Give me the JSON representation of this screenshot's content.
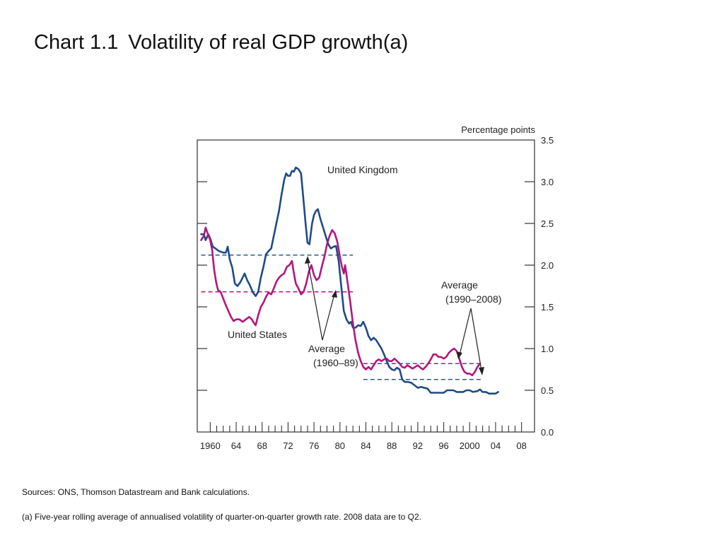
{
  "title": {
    "label": "Chart 1.1",
    "text": "Volatility of real GDP growth(a)"
  },
  "sources": "Sources:  ONS, Thomson Datastream and Bank calculations.",
  "footnote": "(a)  Five-year rolling average of annualised volatility of quarter-on-quarter growth rate.  2008 data are to Q2.",
  "colors": {
    "uk": "#1f4b85",
    "us": "#b0177f",
    "axis": "#333333"
  },
  "chart_data": {
    "type": "line",
    "unit_label": "Percentage points",
    "xlim": [
      1958,
      2010
    ],
    "ylim": [
      0,
      3.5
    ],
    "y_ticks": [
      0,
      0.5,
      1,
      1.5,
      2,
      2.5,
      3,
      3.5
    ],
    "y_tick_labels": [
      "0.0",
      "0.5",
      "1.0",
      "1.5",
      "2.0",
      "2.5",
      "3.0",
      "3.5"
    ],
    "x_tick_labels": [
      {
        "x": 1960,
        "label": "1960"
      },
      {
        "x": 1964,
        "label": "64"
      },
      {
        "x": 1968,
        "label": "68"
      },
      {
        "x": 1972,
        "label": "72"
      },
      {
        "x": 1976,
        "label": "76"
      },
      {
        "x": 1980,
        "label": "80"
      },
      {
        "x": 1984,
        "label": "84"
      },
      {
        "x": 1988,
        "label": "88"
      },
      {
        "x": 1992,
        "label": "92"
      },
      {
        "x": 1996,
        "label": "96"
      },
      {
        "x": 2000,
        "label": "2000"
      },
      {
        "x": 2004,
        "label": "04"
      },
      {
        "x": 2008,
        "label": "08"
      }
    ],
    "series": [
      {
        "name": "United Kingdom",
        "color": "#1f4b85",
        "points": [
          [
            1958.6,
            2.37
          ],
          [
            1959.0,
            2.37
          ],
          [
            1959.3,
            2.3
          ],
          [
            1959.7,
            2.37
          ],
          [
            1960.0,
            2.32
          ],
          [
            1960.4,
            2.22
          ],
          [
            1960.8,
            2.2
          ],
          [
            1961.3,
            2.17
          ],
          [
            1962.0,
            2.15
          ],
          [
            1962.4,
            2.15
          ],
          [
            1962.7,
            2.22
          ],
          [
            1963.0,
            2.07
          ],
          [
            1963.4,
            1.97
          ],
          [
            1963.8,
            1.78
          ],
          [
            1964.2,
            1.75
          ],
          [
            1964.6,
            1.79
          ],
          [
            1965.0,
            1.85
          ],
          [
            1965.3,
            1.9
          ],
          [
            1965.7,
            1.82
          ],
          [
            1966.1,
            1.76
          ],
          [
            1966.6,
            1.67
          ],
          [
            1967.0,
            1.63
          ],
          [
            1967.4,
            1.68
          ],
          [
            1967.8,
            1.85
          ],
          [
            1968.2,
            1.98
          ],
          [
            1968.6,
            2.13
          ],
          [
            1969.0,
            2.17
          ],
          [
            1969.4,
            2.2
          ],
          [
            1969.8,
            2.35
          ],
          [
            1970.2,
            2.5
          ],
          [
            1970.6,
            2.65
          ],
          [
            1971.0,
            2.85
          ],
          [
            1971.4,
            3.02
          ],
          [
            1971.7,
            3.1
          ],
          [
            1972.0,
            3.07
          ],
          [
            1972.3,
            3.07
          ],
          [
            1972.6,
            3.13
          ],
          [
            1972.9,
            3.12
          ],
          [
            1973.2,
            3.17
          ],
          [
            1973.6,
            3.15
          ],
          [
            1974.0,
            3.1
          ],
          [
            1974.3,
            2.85
          ],
          [
            1974.7,
            2.5
          ],
          [
            1975.0,
            2.27
          ],
          [
            1975.3,
            2.25
          ],
          [
            1975.7,
            2.5
          ],
          [
            1976.0,
            2.6
          ],
          [
            1976.3,
            2.65
          ],
          [
            1976.6,
            2.67
          ],
          [
            1977.0,
            2.55
          ],
          [
            1977.4,
            2.45
          ],
          [
            1977.8,
            2.35
          ],
          [
            1978.2,
            2.25
          ],
          [
            1978.6,
            2.2
          ],
          [
            1979.0,
            2.22
          ],
          [
            1979.4,
            2.23
          ],
          [
            1979.8,
            2.05
          ],
          [
            1980.2,
            1.75
          ],
          [
            1980.6,
            1.45
          ],
          [
            1981.0,
            1.35
          ],
          [
            1981.4,
            1.3
          ],
          [
            1981.7,
            1.32
          ],
          [
            1982.0,
            1.25
          ],
          [
            1982.4,
            1.25
          ],
          [
            1982.8,
            1.28
          ],
          [
            1983.2,
            1.27
          ],
          [
            1983.6,
            1.32
          ],
          [
            1984.0,
            1.25
          ],
          [
            1984.4,
            1.15
          ],
          [
            1984.8,
            1.1
          ],
          [
            1985.2,
            1.13
          ],
          [
            1985.6,
            1.1
          ],
          [
            1986.0,
            1.05
          ],
          [
            1986.4,
            1.0
          ],
          [
            1986.8,
            0.93
          ],
          [
            1987.2,
            0.85
          ],
          [
            1987.6,
            0.78
          ],
          [
            1988.0,
            0.75
          ],
          [
            1988.4,
            0.74
          ],
          [
            1988.8,
            0.77
          ],
          [
            1989.2,
            0.75
          ],
          [
            1989.6,
            0.63
          ],
          [
            1990.0,
            0.6
          ],
          [
            1990.5,
            0.6
          ],
          [
            1991.0,
            0.59
          ],
          [
            1991.5,
            0.56
          ],
          [
            1992.0,
            0.53
          ],
          [
            1992.5,
            0.54
          ],
          [
            1993.0,
            0.53
          ],
          [
            1993.5,
            0.52
          ],
          [
            1994.0,
            0.47
          ],
          [
            1995.0,
            0.47
          ],
          [
            1996.0,
            0.47
          ],
          [
            1996.5,
            0.5
          ],
          [
            1997.5,
            0.5
          ],
          [
            1998.0,
            0.48
          ],
          [
            1999.0,
            0.48
          ],
          [
            1999.5,
            0.5
          ],
          [
            2000.0,
            0.5
          ],
          [
            2000.5,
            0.48
          ],
          [
            2001.2,
            0.49
          ],
          [
            2001.6,
            0.51
          ],
          [
            2002.0,
            0.48
          ],
          [
            2002.5,
            0.48
          ],
          [
            2003.0,
            0.46
          ],
          [
            2004.0,
            0.46
          ],
          [
            2004.4,
            0.48
          ]
        ]
      },
      {
        "name": "United States",
        "color": "#b0177f",
        "points": [
          [
            1958.6,
            2.3
          ],
          [
            1959.0,
            2.35
          ],
          [
            1959.3,
            2.45
          ],
          [
            1959.6,
            2.38
          ],
          [
            1960.0,
            2.3
          ],
          [
            1960.3,
            2.18
          ],
          [
            1960.6,
            1.95
          ],
          [
            1960.9,
            1.8
          ],
          [
            1961.2,
            1.7
          ],
          [
            1961.6,
            1.68
          ],
          [
            1962.0,
            1.6
          ],
          [
            1962.4,
            1.52
          ],
          [
            1962.8,
            1.45
          ],
          [
            1963.2,
            1.38
          ],
          [
            1963.6,
            1.33
          ],
          [
            1964.0,
            1.35
          ],
          [
            1964.5,
            1.35
          ],
          [
            1965.0,
            1.32
          ],
          [
            1965.5,
            1.35
          ],
          [
            1966.0,
            1.38
          ],
          [
            1966.4,
            1.35
          ],
          [
            1966.8,
            1.3
          ],
          [
            1967.0,
            1.28
          ],
          [
            1967.4,
            1.4
          ],
          [
            1967.8,
            1.5
          ],
          [
            1968.2,
            1.55
          ],
          [
            1968.6,
            1.62
          ],
          [
            1969.0,
            1.67
          ],
          [
            1969.4,
            1.65
          ],
          [
            1969.8,
            1.72
          ],
          [
            1970.2,
            1.8
          ],
          [
            1970.6,
            1.85
          ],
          [
            1971.0,
            1.88
          ],
          [
            1971.4,
            1.9
          ],
          [
            1971.8,
            1.98
          ],
          [
            1972.2,
            2.0
          ],
          [
            1972.6,
            2.05
          ],
          [
            1972.9,
            1.9
          ],
          [
            1973.2,
            1.78
          ],
          [
            1973.6,
            1.72
          ],
          [
            1974.0,
            1.65
          ],
          [
            1974.4,
            1.68
          ],
          [
            1974.8,
            1.78
          ],
          [
            1975.2,
            1.92
          ],
          [
            1975.6,
            2.0
          ],
          [
            1976.0,
            1.88
          ],
          [
            1976.4,
            1.82
          ],
          [
            1976.8,
            1.85
          ],
          [
            1977.2,
            1.98
          ],
          [
            1977.6,
            2.1
          ],
          [
            1978.0,
            2.25
          ],
          [
            1978.4,
            2.35
          ],
          [
            1978.8,
            2.42
          ],
          [
            1979.2,
            2.38
          ],
          [
            1979.6,
            2.28
          ],
          [
            1980.0,
            2.1
          ],
          [
            1980.3,
            1.98
          ],
          [
            1980.6,
            1.9
          ],
          [
            1980.8,
            2.0
          ],
          [
            1981.2,
            1.78
          ],
          [
            1981.6,
            1.55
          ],
          [
            1982.0,
            1.3
          ],
          [
            1982.4,
            1.1
          ],
          [
            1982.8,
            0.95
          ],
          [
            1983.2,
            0.85
          ],
          [
            1983.6,
            0.78
          ],
          [
            1984.0,
            0.75
          ],
          [
            1984.4,
            0.78
          ],
          [
            1984.8,
            0.75
          ],
          [
            1985.2,
            0.8
          ],
          [
            1985.6,
            0.85
          ],
          [
            1986.0,
            0.87
          ],
          [
            1986.4,
            0.85
          ],
          [
            1986.8,
            0.87
          ],
          [
            1987.2,
            0.88
          ],
          [
            1987.6,
            0.85
          ],
          [
            1988.0,
            0.85
          ],
          [
            1988.4,
            0.88
          ],
          [
            1988.8,
            0.85
          ],
          [
            1989.2,
            0.82
          ],
          [
            1989.6,
            0.78
          ],
          [
            1990.0,
            0.77
          ],
          [
            1990.4,
            0.8
          ],
          [
            1990.8,
            0.78
          ],
          [
            1991.2,
            0.76
          ],
          [
            1991.6,
            0.78
          ],
          [
            1992.0,
            0.8
          ],
          [
            1992.4,
            0.77
          ],
          [
            1992.8,
            0.75
          ],
          [
            1993.2,
            0.78
          ],
          [
            1993.6,
            0.82
          ],
          [
            1994.0,
            0.87
          ],
          [
            1994.4,
            0.93
          ],
          [
            1994.8,
            0.93
          ],
          [
            1995.2,
            0.9
          ],
          [
            1995.6,
            0.9
          ],
          [
            1996.0,
            0.88
          ],
          [
            1996.4,
            0.9
          ],
          [
            1996.8,
            0.95
          ],
          [
            1997.2,
            0.98
          ],
          [
            1997.6,
            1.0
          ],
          [
            1998.0,
            0.97
          ],
          [
            1998.4,
            0.88
          ],
          [
            1998.8,
            0.78
          ],
          [
            1999.2,
            0.72
          ],
          [
            1999.6,
            0.7
          ],
          [
            2000.0,
            0.7
          ],
          [
            2000.4,
            0.68
          ],
          [
            2000.8,
            0.72
          ],
          [
            2001.2,
            0.78
          ],
          [
            2001.6,
            0.82
          ]
        ]
      }
    ],
    "averages_1960_89": [
      {
        "series": "United Kingdom",
        "value": 2.12,
        "x_from": 1958.6,
        "x_to": 1982.0
      },
      {
        "series": "United States",
        "value": 1.68,
        "x_from": 1958.6,
        "x_to": 1982.0
      }
    ],
    "averages_1990_2008": [
      {
        "series": "United States",
        "value": 0.82,
        "x_from": 1983.6,
        "x_to": 2002.0
      },
      {
        "series": "United Kingdom",
        "value": 0.63,
        "x_from": 1983.6,
        "x_to": 2002.0
      }
    ],
    "annotations": {
      "uk_label": "United Kingdom",
      "us_label": "United States",
      "avg_early_line1": "Average",
      "avg_early_line2": "(1960–89)",
      "avg_late_line1": "Average",
      "avg_late_line2": "(1990–2008)"
    }
  }
}
